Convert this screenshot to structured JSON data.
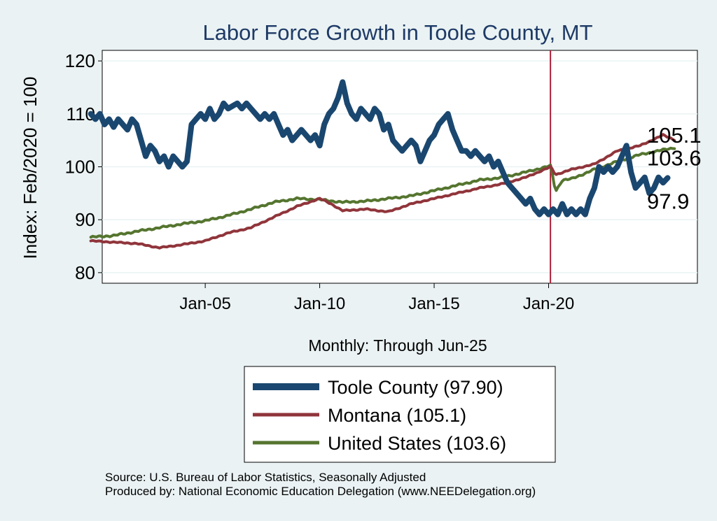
{
  "chart_data": {
    "type": "line",
    "title": "Labor Force Growth in Toole  County, MT",
    "ylabel": "Index: Feb/2020 = 100",
    "xlabel": "Monthly: Through Jun-25",
    "ylim": [
      78,
      122
    ],
    "xlim": [
      2000.5,
      2026.5
    ],
    "yticks": [
      80,
      90,
      100,
      110,
      120
    ],
    "ytick_labels": [
      "80",
      "90",
      "100",
      "110",
      "120"
    ],
    "xticks": [
      2005,
      2010,
      2015,
      2020
    ],
    "xtick_labels": [
      "Jan-05",
      "Jan-10",
      "Jan-15",
      "Jan-20"
    ],
    "grid": true,
    "vline": {
      "x": 2020.08,
      "color": "#b0203a"
    },
    "legend_position": "bottom",
    "series": [
      {
        "name": "Toole  County",
        "legend": "Toole  County (97.90)",
        "end_label": "97.9",
        "color": "#1a476f",
        "points": [
          [
            2000.0,
            110
          ],
          [
            2000.2,
            109
          ],
          [
            2000.4,
            110
          ],
          [
            2000.6,
            108
          ],
          [
            2000.8,
            109
          ],
          [
            2001.0,
            107.5
          ],
          [
            2001.2,
            109
          ],
          [
            2001.4,
            108
          ],
          [
            2001.6,
            107
          ],
          [
            2001.8,
            109
          ],
          [
            2002.0,
            108
          ],
          [
            2002.2,
            105
          ],
          [
            2002.4,
            102
          ],
          [
            2002.6,
            104
          ],
          [
            2002.8,
            103
          ],
          [
            2003.0,
            101
          ],
          [
            2003.2,
            102
          ],
          [
            2003.4,
            100
          ],
          [
            2003.6,
            102
          ],
          [
            2003.8,
            101
          ],
          [
            2004.0,
            100
          ],
          [
            2004.2,
            101
          ],
          [
            2004.4,
            108
          ],
          [
            2004.6,
            109
          ],
          [
            2004.8,
            110
          ],
          [
            2005.0,
            109
          ],
          [
            2005.2,
            111
          ],
          [
            2005.4,
            109
          ],
          [
            2005.6,
            110
          ],
          [
            2005.8,
            112
          ],
          [
            2006.0,
            111
          ],
          [
            2006.2,
            111.5
          ],
          [
            2006.4,
            112
          ],
          [
            2006.6,
            111
          ],
          [
            2006.8,
            112
          ],
          [
            2007.0,
            111
          ],
          [
            2007.2,
            110
          ],
          [
            2007.4,
            109
          ],
          [
            2007.6,
            110
          ],
          [
            2007.8,
            109
          ],
          [
            2008.0,
            110
          ],
          [
            2008.2,
            108
          ],
          [
            2008.4,
            106
          ],
          [
            2008.6,
            107
          ],
          [
            2008.8,
            105
          ],
          [
            2009.0,
            106
          ],
          [
            2009.2,
            107
          ],
          [
            2009.4,
            106
          ],
          [
            2009.6,
            105
          ],
          [
            2009.8,
            106
          ],
          [
            2010.0,
            104
          ],
          [
            2010.2,
            108
          ],
          [
            2010.4,
            110
          ],
          [
            2010.6,
            111
          ],
          [
            2010.8,
            113
          ],
          [
            2011.0,
            116
          ],
          [
            2011.2,
            112
          ],
          [
            2011.4,
            110
          ],
          [
            2011.6,
            109
          ],
          [
            2011.8,
            111
          ],
          [
            2012.0,
            110
          ],
          [
            2012.2,
            109
          ],
          [
            2012.4,
            111
          ],
          [
            2012.6,
            110
          ],
          [
            2012.8,
            107
          ],
          [
            2013.0,
            108
          ],
          [
            2013.2,
            105
          ],
          [
            2013.4,
            104
          ],
          [
            2013.6,
            103
          ],
          [
            2013.8,
            104
          ],
          [
            2014.0,
            105
          ],
          [
            2014.2,
            104
          ],
          [
            2014.4,
            101
          ],
          [
            2014.6,
            103
          ],
          [
            2014.8,
            105
          ],
          [
            2015.0,
            106
          ],
          [
            2015.2,
            108
          ],
          [
            2015.4,
            109
          ],
          [
            2015.6,
            110
          ],
          [
            2015.8,
            107
          ],
          [
            2016.0,
            105
          ],
          [
            2016.2,
            103
          ],
          [
            2016.4,
            103
          ],
          [
            2016.6,
            102
          ],
          [
            2016.8,
            103
          ],
          [
            2017.0,
            102
          ],
          [
            2017.2,
            101
          ],
          [
            2017.4,
            102
          ],
          [
            2017.6,
            100
          ],
          [
            2017.8,
            101
          ],
          [
            2018.0,
            99
          ],
          [
            2018.2,
            97
          ],
          [
            2018.4,
            96
          ],
          [
            2018.6,
            95
          ],
          [
            2018.8,
            94
          ],
          [
            2019.0,
            93
          ],
          [
            2019.2,
            94
          ],
          [
            2019.4,
            92
          ],
          [
            2019.6,
            91
          ],
          [
            2019.8,
            92
          ],
          [
            2020.0,
            91
          ],
          [
            2020.2,
            92
          ],
          [
            2020.4,
            91
          ],
          [
            2020.6,
            93
          ],
          [
            2020.8,
            91
          ],
          [
            2021.0,
            92
          ],
          [
            2021.2,
            91
          ],
          [
            2021.4,
            92
          ],
          [
            2021.6,
            91
          ],
          [
            2021.8,
            94
          ],
          [
            2022.0,
            96
          ],
          [
            2022.2,
            100
          ],
          [
            2022.4,
            99
          ],
          [
            2022.6,
            100
          ],
          [
            2022.8,
            99
          ],
          [
            2023.0,
            100
          ],
          [
            2023.2,
            102
          ],
          [
            2023.4,
            104
          ],
          [
            2023.6,
            99
          ],
          [
            2023.8,
            96
          ],
          [
            2024.0,
            97
          ],
          [
            2024.2,
            98
          ],
          [
            2024.4,
            95
          ],
          [
            2024.6,
            96
          ],
          [
            2024.8,
            98
          ],
          [
            2025.0,
            97
          ],
          [
            2025.2,
            97.9
          ]
        ]
      },
      {
        "name": "Montana",
        "legend": "Montana (105.1)",
        "end_label": "105.1",
        "color": "#90353b",
        "points": []
      },
      {
        "name": "United States",
        "legend": "United States (103.6)",
        "end_label": "103.6",
        "color": "#55752f",
        "points": []
      }
    ]
  },
  "footer": {
    "source": "Source: U.S. Bureau of Labor Statistics, Seasonally Adjusted",
    "produced_by": "Produced by: National Economic Education Delegation (www.NEEDelegation.org)"
  }
}
